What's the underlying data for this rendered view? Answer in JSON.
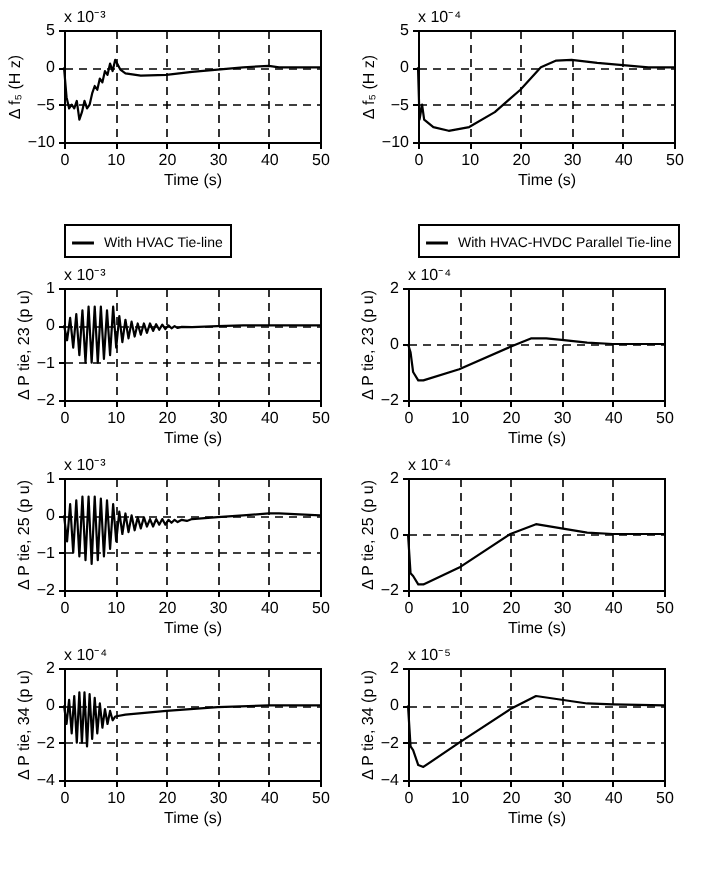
{
  "chart_data": [
    {
      "type": "line",
      "xlabel": "Time (s)",
      "ylabel": "Δ f₅ (H z)",
      "xlim": [
        0,
        50
      ],
      "xticks": [
        0,
        10,
        20,
        30,
        40,
        50
      ],
      "ylim": [
        -10,
        5
      ],
      "yticks": [
        -10,
        -5,
        0,
        5
      ],
      "grid": true,
      "legend": "bottom",
      "annotations": [
        "x 10⁻³"
      ],
      "series": [
        {
          "name": "With HVAC Tie-line",
          "color": "#000000",
          "x": [
            0,
            0.5,
            1,
            1.5,
            2,
            2.5,
            3,
            3.5,
            4,
            4.5,
            5,
            5.5,
            6,
            6.5,
            7,
            7.5,
            8,
            8.5,
            9,
            9.5,
            10,
            11,
            12,
            15,
            20,
            25,
            30,
            35,
            40,
            42,
            50
          ],
          "values": [
            0,
            -4,
            -5.5,
            -5,
            -5.5,
            -4.5,
            -7,
            -6,
            -4.5,
            -5.5,
            -5,
            -3.5,
            -2.5,
            -3,
            -1.5,
            -2,
            -0.5,
            -1,
            0.5,
            -0.5,
            1,
            -0.3,
            -0.8,
            -1.1,
            -1,
            -0.6,
            -0.3,
            0,
            0.2,
            0,
            0
          ]
        }
      ]
    },
    {
      "type": "line",
      "xlabel": "Time (s)",
      "ylabel": "Δ f₅ (H z)",
      "xlim": [
        0,
        50
      ],
      "xticks": [
        0,
        10,
        20,
        30,
        40,
        50
      ],
      "ylim": [
        -10,
        5
      ],
      "yticks": [
        -10,
        -5,
        0,
        5
      ],
      "grid": true,
      "legend": "bottom",
      "annotations": [
        "x 10⁻⁴"
      ],
      "series": [
        {
          "name": "With HVAC-HVDC Parallel Tie-line",
          "color": "#000000",
          "x": [
            0,
            0.3,
            0.8,
            1.2,
            3,
            6,
            10,
            15,
            20,
            24,
            27,
            30,
            35,
            40,
            45,
            50
          ],
          "values": [
            0,
            -7,
            -5,
            -7,
            -8,
            -8.5,
            -8,
            -6,
            -3,
            0,
            0.9,
            1,
            0.6,
            0.3,
            0,
            0
          ]
        }
      ]
    },
    {
      "type": "line",
      "xlabel": "Time (s)",
      "ylabel": "Δ P tie, 23 (p u)",
      "xlim": [
        0,
        50
      ],
      "xticks": [
        0,
        10,
        20,
        30,
        40,
        50
      ],
      "ylim": [
        -2,
        1
      ],
      "yticks": [
        -2,
        -1,
        0,
        1
      ],
      "grid": true,
      "annotations": [
        "x 10⁻³"
      ],
      "series": [
        {
          "color": "#000000",
          "x": [
            0,
            0.6,
            1.2,
            1.8,
            2.4,
            3,
            3.6,
            4.2,
            4.8,
            5.4,
            6,
            6.6,
            7.2,
            7.8,
            8.4,
            9,
            9.6,
            10.2,
            10.8,
            11.4,
            12,
            12.6,
            13.2,
            13.8,
            14.4,
            15,
            15.6,
            16.2,
            16.8,
            17.4,
            18,
            18.6,
            19.2,
            19.8,
            20.4,
            21,
            21.6,
            22.2,
            23,
            25,
            30,
            35,
            40,
            50
          ],
          "values": [
            0,
            -0.4,
            0.2,
            -0.6,
            0.3,
            -0.8,
            0.4,
            -1,
            0.5,
            -1,
            0.5,
            -1,
            0.5,
            -0.9,
            0.4,
            -0.8,
            0.5,
            -0.6,
            0.25,
            -0.45,
            0.15,
            -0.35,
            0.1,
            -0.3,
            0.05,
            -0.25,
            0.05,
            -0.2,
            0.05,
            -0.15,
            0.03,
            -0.12,
            0.02,
            -0.1,
            0,
            -0.08,
            -0.02,
            -0.07,
            -0.04,
            -0.05,
            -0.02,
            0,
            0,
            0
          ]
        }
      ]
    },
    {
      "type": "line",
      "xlabel": "Time (s)",
      "ylabel": "Δ P tie, 23 (p u)",
      "xlim": [
        0,
        50
      ],
      "xticks": [
        0,
        10,
        20,
        30,
        40,
        50
      ],
      "ylim": [
        -2,
        2
      ],
      "yticks": [
        -2,
        0,
        2
      ],
      "grid": true,
      "annotations": [
        "x 10⁻⁴"
      ],
      "series": [
        {
          "color": "#000000",
          "x": [
            0,
            0.5,
            1,
            2,
            3,
            10,
            20,
            24,
            27,
            30,
            35,
            40,
            50
          ],
          "values": [
            0,
            -0.3,
            -1,
            -1.3,
            -1.3,
            -0.9,
            -0.1,
            0.2,
            0.2,
            0.15,
            0.05,
            0,
            0
          ]
        }
      ]
    },
    {
      "type": "line",
      "xlabel": "Time (s)",
      "ylabel": "Δ P tie, 25 (p u)",
      "xlim": [
        0,
        50
      ],
      "xticks": [
        0,
        10,
        20,
        30,
        40,
        50
      ],
      "ylim": [
        -2,
        1
      ],
      "yticks": [
        -2,
        -1,
        0,
        1
      ],
      "grid": true,
      "annotations": [
        "x 10⁻³"
      ],
      "series": [
        {
          "color": "#000000",
          "x": [
            0,
            0.6,
            1.2,
            1.8,
            2.4,
            3,
            3.6,
            4.2,
            4.8,
            5.4,
            6,
            6.6,
            7.2,
            7.8,
            8.4,
            9,
            9.6,
            10.2,
            10.8,
            11.4,
            12,
            12.6,
            13.2,
            13.8,
            14.4,
            15,
            15.6,
            16.2,
            16.8,
            17.4,
            18,
            18.6,
            19.2,
            19.8,
            20.4,
            21,
            21.6,
            22.2,
            23,
            24,
            25,
            30,
            35,
            40,
            42,
            50
          ],
          "values": [
            0,
            -0.7,
            0.3,
            -1,
            0.4,
            -1.1,
            0.5,
            -1.2,
            0.5,
            -1.3,
            0.5,
            -1.2,
            0.45,
            -1.1,
            0.4,
            -0.9,
            0.3,
            -0.7,
            0.1,
            -0.5,
            0.05,
            -0.45,
            0,
            -0.4,
            -0.05,
            -0.35,
            -0.05,
            -0.3,
            -0.1,
            -0.3,
            -0.1,
            -0.25,
            -0.1,
            -0.25,
            -0.12,
            -0.2,
            -0.12,
            -0.18,
            -0.12,
            -0.15,
            -0.1,
            -0.05,
            0,
            0.05,
            0.05,
            0
          ]
        }
      ]
    },
    {
      "type": "line",
      "xlabel": "Time (s)",
      "ylabel": "Δ P tie, 25 (p u)",
      "xlim": [
        0,
        50
      ],
      "xticks": [
        0,
        10,
        20,
        30,
        40,
        50
      ],
      "ylim": [
        -2,
        2
      ],
      "yticks": [
        -2,
        0,
        2
      ],
      "grid": true,
      "annotations": [
        "x 10⁻⁴"
      ],
      "series": [
        {
          "color": "#000000",
          "x": [
            0,
            0.5,
            1,
            2,
            3,
            10,
            20,
            25,
            30,
            35,
            40,
            50
          ],
          "values": [
            0,
            -1.4,
            -1.5,
            -1.8,
            -1.8,
            -1.2,
            0,
            0.35,
            0.2,
            0.05,
            0,
            0
          ]
        }
      ]
    },
    {
      "type": "line",
      "xlabel": "Time (s)",
      "ylabel": "Δ P tie, 34 (p u)",
      "xlim": [
        0,
        50
      ],
      "xticks": [
        0,
        10,
        20,
        30,
        40,
        50
      ],
      "ylim": [
        -4,
        2
      ],
      "yticks": [
        -4,
        -2,
        0,
        2
      ],
      "grid": true,
      "annotations": [
        "x 10⁻⁴"
      ],
      "series": [
        {
          "color": "#000000",
          "x": [
            0,
            0.5,
            1,
            1.5,
            2,
            2.5,
            3,
            3.5,
            4,
            4.5,
            5,
            5.5,
            6,
            6.5,
            7,
            7.5,
            8,
            8.5,
            9,
            9.5,
            10,
            12,
            20,
            30,
            40,
            50
          ],
          "values": [
            0,
            -1,
            0.3,
            -1.5,
            0.5,
            -2,
            0.7,
            -2,
            0.7,
            -2.2,
            0.6,
            -1.8,
            0.4,
            -1.5,
            0.1,
            -1.2,
            -0.2,
            -1,
            -0.3,
            -0.8,
            -0.6,
            -0.5,
            -0.3,
            -0.1,
            0,
            0
          ]
        }
      ]
    },
    {
      "type": "line",
      "xlabel": "Time (s)",
      "ylabel": "Δ P tie, 34 (p u)",
      "xlim": [
        0,
        50
      ],
      "xticks": [
        0,
        10,
        20,
        30,
        40,
        50
      ],
      "ylim": [
        -4,
        2
      ],
      "yticks": [
        -4,
        -2,
        0,
        2
      ],
      "grid": true,
      "annotations": [
        "x 10⁻⁵"
      ],
      "series": [
        {
          "color": "#000000",
          "x": [
            0,
            0.5,
            1,
            2,
            3,
            10,
            20,
            25,
            30,
            35,
            40,
            50
          ],
          "values": [
            0,
            -2.2,
            -2.4,
            -3.2,
            -3.3,
            -2,
            -0.2,
            0.5,
            0.3,
            0.1,
            0.05,
            0
          ]
        }
      ]
    }
  ]
}
